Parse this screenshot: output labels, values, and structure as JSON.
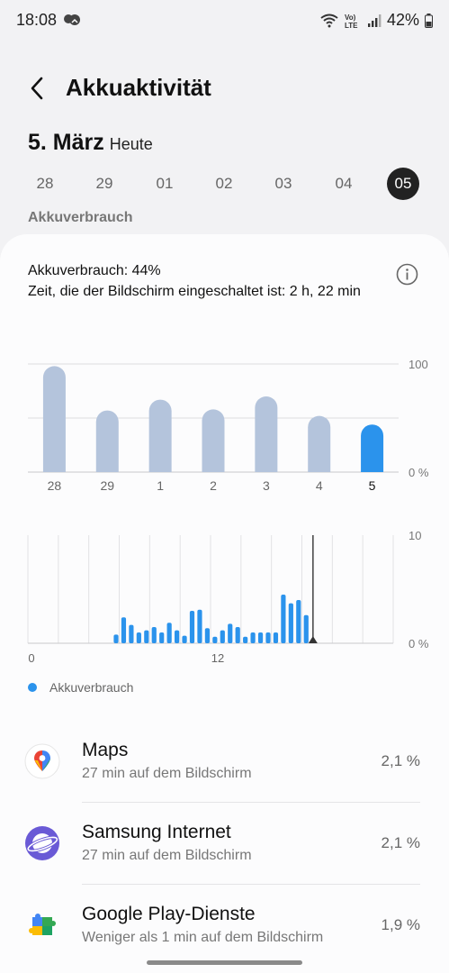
{
  "status_bar": {
    "time": "18:08",
    "network_label": "VoLTE",
    "battery_level": "42%"
  },
  "header": {
    "title": "Akkuaktivität"
  },
  "date": {
    "main": "5. März",
    "sub": "Heute"
  },
  "days": [
    "28",
    "29",
    "01",
    "02",
    "03",
    "04",
    "05"
  ],
  "selected_day": "05",
  "section_label": "Akkuverbrauch",
  "summary": {
    "usage_line": "Akkuverbrauch: 44%",
    "screen_line": "Zeit, die der Bildschirm eingeschaltet ist: 2 h, 22 min"
  },
  "colors": {
    "accent": "#2b93ec",
    "bar_muted": "#b4c4dc",
    "active_day_bg": "#222222"
  },
  "chart_data": [
    {
      "type": "bar",
      "categories": [
        "28",
        "29",
        "1",
        "2",
        "3",
        "4",
        "5"
      ],
      "values": [
        98,
        57,
        67,
        58,
        70,
        52,
        44
      ],
      "highlight_index": 6,
      "ylim": [
        0,
        100
      ],
      "y_ticks": [
        "100",
        "0 %"
      ]
    },
    {
      "type": "bar",
      "x_ticks": [
        "0",
        "12"
      ],
      "ylim": [
        0,
        10
      ],
      "y_ticks": [
        "10",
        "0 %"
      ],
      "values": [
        0.8,
        2.4,
        1.7,
        1.0,
        1.2,
        1.5,
        1.0,
        1.9,
        1.2,
        0.7,
        3.0,
        3.1,
        1.4,
        0.6,
        1.2,
        1.8,
        1.5,
        0.6,
        1.0,
        1.0,
        1.0,
        1.0,
        4.5,
        3.7,
        4.0,
        2.6
      ],
      "current_marker_value": 25.9,
      "series": [
        {
          "name": "Akkuverbrauch",
          "color": "#2b93ec"
        }
      ]
    }
  ],
  "legend": {
    "label": "Akkuverbrauch"
  },
  "apps": [
    {
      "name": "Maps",
      "subtitle": "27 min auf dem Bildschirm",
      "percent": "2,1 %",
      "icon": "maps-pin-icon"
    },
    {
      "name": "Samsung Internet",
      "subtitle": "27 min auf dem Bildschirm",
      "percent": "2,1 %",
      "icon": "planet-icon"
    },
    {
      "name": "Google Play-Dienste",
      "subtitle": "Weniger als 1 min auf dem Bildschirm",
      "percent": "1,9 %",
      "icon": "puzzle-icon"
    }
  ]
}
